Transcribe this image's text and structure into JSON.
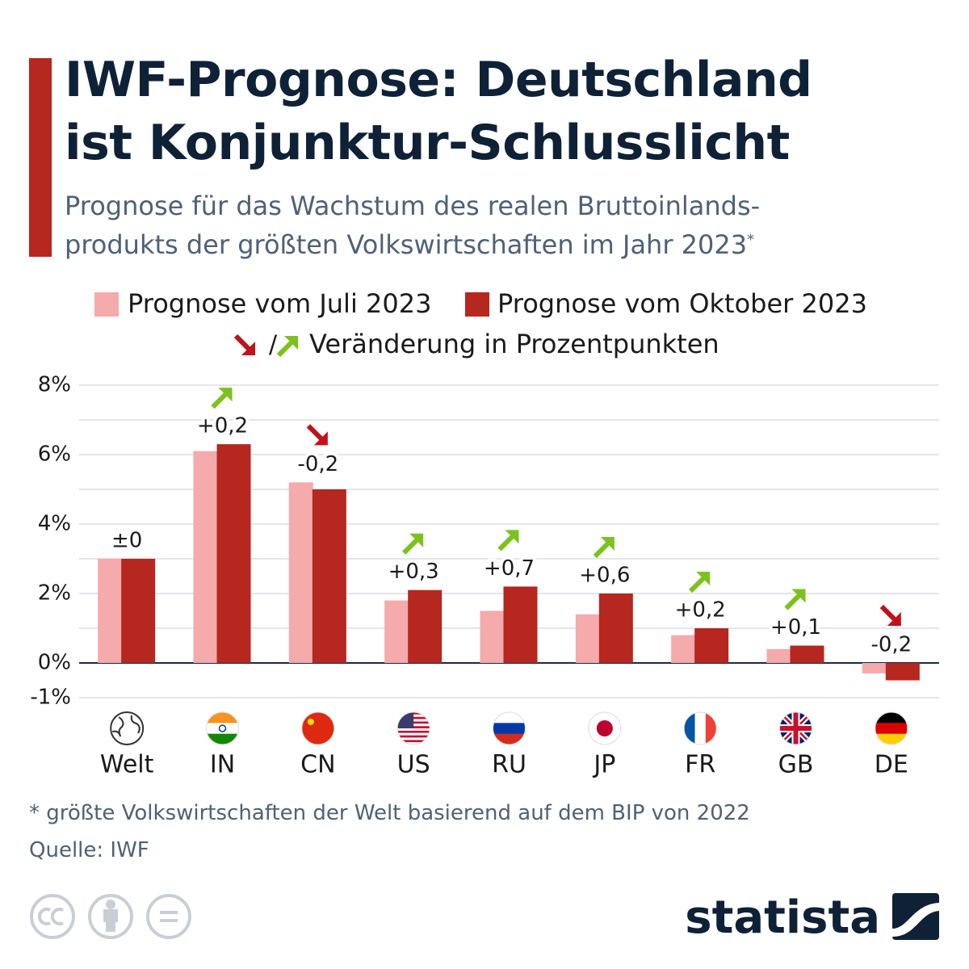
{
  "chart_data": {
    "type": "bar",
    "title": [
      "IWF-Prognose: Deutschland",
      "ist Konjunktur-Schlusslicht"
    ],
    "subtitle": [
      "Prognose für das Wachstum des realen Bruttoinlands-",
      "produkts der größten Volkswirtschaften im Jahr 2023"
    ],
    "subtitle_mark": "*",
    "categories": [
      "Welt",
      "IN",
      "CN",
      "US",
      "RU",
      "JP",
      "FR",
      "GB",
      "DE"
    ],
    "series": [
      {
        "name": "Prognose vom Juli 2023",
        "color": "#f5aaab",
        "values": [
          3.0,
          6.1,
          5.2,
          1.8,
          1.5,
          1.4,
          0.8,
          0.4,
          -0.3
        ]
      },
      {
        "name": "Prognose vom Oktober 2023",
        "color": "#b5271f",
        "values": [
          3.0,
          6.3,
          5.0,
          2.1,
          2.2,
          2.0,
          1.0,
          0.5,
          -0.5
        ]
      }
    ],
    "change": {
      "name": "Veränderung in Prozentpunkten",
      "values": [
        0,
        0.2,
        -0.2,
        0.3,
        0.7,
        0.6,
        0.2,
        0.1,
        -0.2
      ],
      "value_labels": [
        "±0",
        "+0,2",
        "-0,2",
        "+0,3",
        "+0,7",
        "+0,6",
        "+0,2",
        "+0,1",
        "-0,2"
      ],
      "up_color": "#7cc11d",
      "down_color": "#c1121a"
    },
    "legend_separator": "/",
    "ylim": [
      -1,
      8
    ],
    "yticks": [
      {
        "value": 8,
        "label": "8%"
      },
      {
        "value": 6,
        "label": "6%"
      },
      {
        "value": 4,
        "label": "4%"
      },
      {
        "value": 2,
        "label": "2%"
      },
      {
        "value": 0,
        "label": "0%"
      },
      {
        "value": -1,
        "label": "-1%"
      }
    ],
    "minor_yticks": [
      7,
      5,
      3,
      1
    ],
    "grid": true,
    "footnote": "* größte Volkswirtschaften der Welt basierend auf dem BIP von 2022",
    "source": "Quelle: IWF",
    "brand": "statista"
  }
}
